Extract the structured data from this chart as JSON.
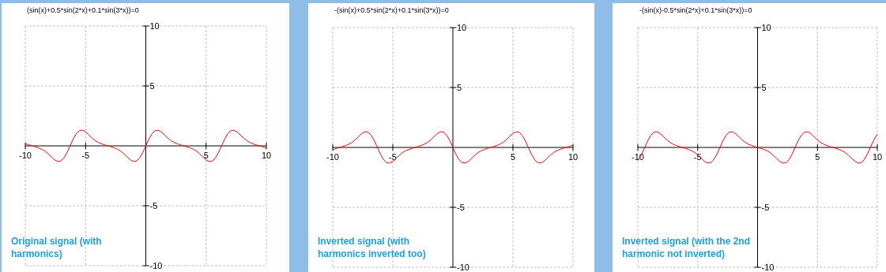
{
  "chart_data": [
    {
      "type": "line",
      "title": "(sin(x)+0.5*sin(2*x)+0.1*sin(3*x))=0",
      "annotations": [
        "Original signal (with harmonics)"
      ],
      "x": [
        -10,
        -9.95,
        -9.69,
        -9.42,
        -9.16,
        -8.9,
        -8.64,
        -8.38,
        -8.12,
        -7.85,
        -7.59,
        -7.33,
        -7.07,
        -6.81,
        -6.55,
        -6.28,
        -6.02,
        -5.76,
        -5.5,
        -5.24,
        -4.97,
        -4.71,
        -4.45,
        -4.19,
        -3.93,
        -3.67,
        -3.4,
        -3.14,
        -2.88,
        -2.62,
        -2.36,
        -2.09,
        -1.83,
        -1.57,
        -1.31,
        -1.05,
        -0.79,
        -0.52,
        -0.26,
        0,
        0.26,
        0.52,
        0.79,
        1.05,
        1.31,
        1.57,
        1.83,
        2.09,
        2.36,
        2.62,
        2.88,
        3.14,
        3.4,
        3.67,
        3.93,
        4.19,
        4.45,
        4.71,
        4.97,
        5.24,
        5.5,
        5.76,
        6.02,
        6.28,
        6.55,
        6.81,
        7.07,
        7.33,
        7.59,
        7.85,
        8.12,
        8.38,
        8.64,
        8.9,
        9.16,
        9.42,
        9.69,
        9.95,
        10
      ],
      "series": [
        {
          "color": "#ff0000",
          "values": [
            0.19,
            0.17,
            0.08,
            0,
            -0.08,
            -0.17,
            -0.28,
            -0.43,
            -0.65,
            -0.9,
            -1.15,
            -1.3,
            -1.28,
            -1.03,
            -0.58,
            0,
            0.58,
            1.03,
            1.28,
            1.3,
            1.15,
            0.9,
            0.65,
            0.43,
            0.28,
            0.17,
            0.08,
            0,
            -0.08,
            -0.17,
            -0.28,
            -0.43,
            -0.65,
            -0.9,
            -1.15,
            -1.3,
            -1.28,
            -1.03,
            -0.58,
            0,
            0.58,
            1.03,
            1.28,
            1.3,
            1.15,
            0.9,
            0.65,
            0.43,
            0.28,
            0.17,
            0.08,
            0,
            -0.08,
            -0.17,
            -0.28,
            -0.43,
            -0.65,
            -0.9,
            -1.15,
            -1.3,
            -1.28,
            -1.03,
            -0.58,
            0,
            0.58,
            1.03,
            1.28,
            1.3,
            1.15,
            0.9,
            0.65,
            0.43,
            0.28,
            0.17,
            0.08,
            0,
            -0.08,
            -0.17,
            -0.19
          ]
        }
      ],
      "xlim": [
        -10,
        10
      ],
      "ylim": [
        -10,
        10
      ],
      "xticks": [
        -10,
        -5,
        5,
        10
      ],
      "yticks": [
        -10,
        -5,
        5,
        10
      ],
      "grid": true
    },
    {
      "type": "line",
      "title": "-(sin(x)+0.5*sin(2*x)+0.1*sin(3*x))=0",
      "annotations": [
        "Inverted signal (with harmonics inverted too)"
      ],
      "x": [
        -10,
        -9.95,
        -9.69,
        -9.42,
        -9.16,
        -8.9,
        -8.64,
        -8.38,
        -8.12,
        -7.85,
        -7.59,
        -7.33,
        -7.07,
        -6.81,
        -6.55,
        -6.28,
        -6.02,
        -5.76,
        -5.5,
        -5.24,
        -4.97,
        -4.71,
        -4.45,
        -4.19,
        -3.93,
        -3.67,
        -3.4,
        -3.14,
        -2.88,
        -2.62,
        -2.36,
        -2.09,
        -1.83,
        -1.57,
        -1.31,
        -1.05,
        -0.79,
        -0.52,
        -0.26,
        0,
        0.26,
        0.52,
        0.79,
        1.05,
        1.31,
        1.57,
        1.83,
        2.09,
        2.36,
        2.62,
        2.88,
        3.14,
        3.4,
        3.67,
        3.93,
        4.19,
        4.45,
        4.71,
        4.97,
        5.24,
        5.5,
        5.76,
        6.02,
        6.28,
        6.55,
        6.81,
        7.07,
        7.33,
        7.59,
        7.85,
        8.12,
        8.38,
        8.64,
        8.9,
        9.16,
        9.42,
        9.69,
        9.95,
        10
      ],
      "series": [
        {
          "color": "#ff0000",
          "values": [
            -0.19,
            -0.17,
            -0.08,
            0,
            0.08,
            0.17,
            0.28,
            0.43,
            0.65,
            0.9,
            1.15,
            1.3,
            1.28,
            1.03,
            0.58,
            0,
            -0.58,
            -1.03,
            -1.28,
            -1.3,
            -1.15,
            -0.9,
            -0.65,
            -0.43,
            -0.28,
            -0.17,
            -0.08,
            0,
            0.08,
            0.17,
            0.28,
            0.43,
            0.65,
            0.9,
            1.15,
            1.3,
            1.28,
            1.03,
            0.58,
            0,
            -0.58,
            -1.03,
            -1.28,
            -1.3,
            -1.15,
            -0.9,
            -0.65,
            -0.43,
            -0.28,
            -0.17,
            -0.08,
            0,
            0.08,
            0.17,
            0.28,
            0.43,
            0.65,
            0.9,
            1.15,
            1.3,
            1.28,
            1.03,
            0.58,
            0,
            -0.58,
            -1.03,
            -1.28,
            -1.3,
            -1.15,
            -0.9,
            -0.65,
            -0.43,
            -0.28,
            -0.17,
            -0.08,
            0,
            0.08,
            0.17,
            0.19
          ]
        }
      ],
      "xlim": [
        -10,
        10
      ],
      "ylim": [
        -10,
        10
      ],
      "xticks": [
        -10,
        -5,
        5,
        10
      ],
      "yticks": [
        -10,
        -5,
        5,
        10
      ],
      "grid": true
    },
    {
      "type": "line",
      "title": "-(sin(x)-0.5*sin(2*x)+0.1*sin(3*x))=0",
      "annotations": [
        "Inverted signal (with the 2nd harmonic not inverted)"
      ],
      "x": [
        -10,
        -9.95,
        -9.69,
        -9.42,
        -9.16,
        -8.9,
        -8.64,
        -8.38,
        -8.12,
        -7.85,
        -7.59,
        -7.33,
        -7.07,
        -6.81,
        -6.55,
        -6.28,
        -6.02,
        -5.76,
        -5.5,
        -5.24,
        -4.97,
        -4.71,
        -4.45,
        -4.19,
        -3.93,
        -3.67,
        -3.4,
        -3.14,
        -2.88,
        -2.62,
        -2.36,
        -2.09,
        -1.83,
        -1.57,
        -1.31,
        -1.05,
        -0.79,
        -0.52,
        -0.26,
        0,
        0.26,
        0.52,
        0.79,
        1.05,
        1.31,
        1.57,
        1.83,
        2.09,
        2.36,
        2.62,
        2.88,
        3.14,
        3.4,
        3.67,
        3.93,
        4.19,
        4.45,
        4.71,
        4.97,
        5.24,
        5.5,
        5.76,
        6.02,
        6.28,
        6.55,
        6.81,
        7.07,
        7.33,
        7.59,
        7.85,
        8.12,
        8.38,
        8.64,
        8.9,
        9.16,
        9.42,
        9.69,
        9.95,
        10
      ],
      "series": [
        {
          "color": "#ff0000",
          "values": [
            -1.1,
            -1.03,
            -0.58,
            0,
            0.58,
            1.03,
            1.28,
            1.3,
            1.15,
            0.9,
            0.65,
            0.43,
            0.28,
            0.17,
            0.08,
            0,
            -0.08,
            -0.17,
            -0.28,
            -0.43,
            -0.65,
            -0.9,
            -1.15,
            -1.3,
            -1.28,
            -1.03,
            -0.58,
            0,
            0.58,
            1.03,
            1.28,
            1.3,
            1.15,
            0.9,
            0.65,
            0.43,
            0.28,
            0.17,
            0.08,
            0,
            -0.08,
            -0.17,
            -0.28,
            -0.43,
            -0.65,
            -0.9,
            -1.15,
            -1.3,
            -1.28,
            -1.03,
            -0.58,
            0,
            0.58,
            1.03,
            1.28,
            1.3,
            1.15,
            0.9,
            0.65,
            0.43,
            0.28,
            0.17,
            0.08,
            0,
            -0.08,
            -0.17,
            -0.28,
            -0.43,
            -0.65,
            -0.9,
            -1.15,
            -1.3,
            -1.28,
            -1.03,
            -0.58,
            0,
            0.58,
            1.03,
            1.1
          ]
        }
      ],
      "xlim": [
        -10,
        10
      ],
      "ylim": [
        -10,
        10
      ],
      "xticks": [
        -10,
        -5,
        5,
        10
      ],
      "yticks": [
        -10,
        -5,
        5,
        10
      ],
      "grid": true
    }
  ]
}
